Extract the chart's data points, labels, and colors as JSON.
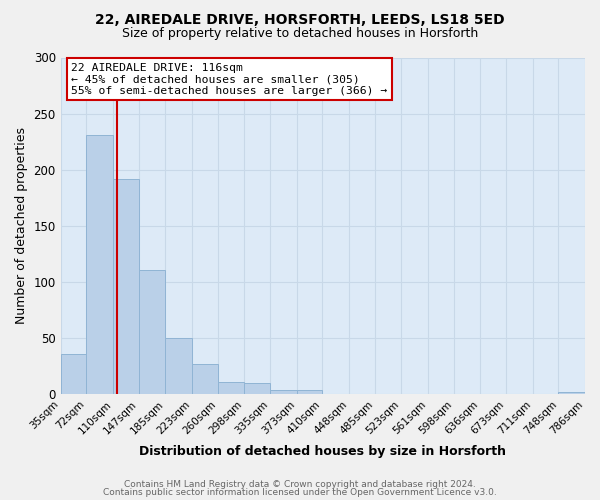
{
  "title1": "22, AIREDALE DRIVE, HORSFORTH, LEEDS, LS18 5ED",
  "title2": "Size of property relative to detached houses in Horsforth",
  "xlabel": "Distribution of detached houses by size in Horsforth",
  "ylabel": "Number of detached properties",
  "footer1": "Contains HM Land Registry data © Crown copyright and database right 2024.",
  "footer2": "Contains public sector information licensed under the Open Government Licence v3.0.",
  "bin_edges": [
    35,
    72,
    110,
    147,
    185,
    223,
    260,
    298,
    335,
    373,
    410,
    448,
    485,
    523,
    561,
    598,
    636,
    673,
    711,
    748,
    786
  ],
  "bin_counts": [
    36,
    231,
    192,
    111,
    50,
    27,
    11,
    10,
    4,
    4,
    0,
    0,
    0,
    0,
    0,
    0,
    0,
    0,
    0,
    2
  ],
  "bar_color": "#bad0e8",
  "bar_edgecolor": "#90b4d4",
  "property_size": 116,
  "vertical_line_x": 116,
  "vline_color": "#cc0000",
  "annotation_title": "22 AIREDALE DRIVE: 116sqm",
  "annotation_line1": "← 45% of detached houses are smaller (305)",
  "annotation_line2": "55% of semi-detached houses are larger (366) →",
  "annotation_box_edgecolor": "#cc0000",
  "ylim": [
    0,
    300
  ],
  "yticks": [
    0,
    50,
    100,
    150,
    200,
    250,
    300
  ],
  "grid_color": "#c8d8e8",
  "bg_color": "#ddeaf7",
  "fig_bg_color": "#f0f0f0",
  "title_fontsize": 10,
  "subtitle_fontsize": 9
}
